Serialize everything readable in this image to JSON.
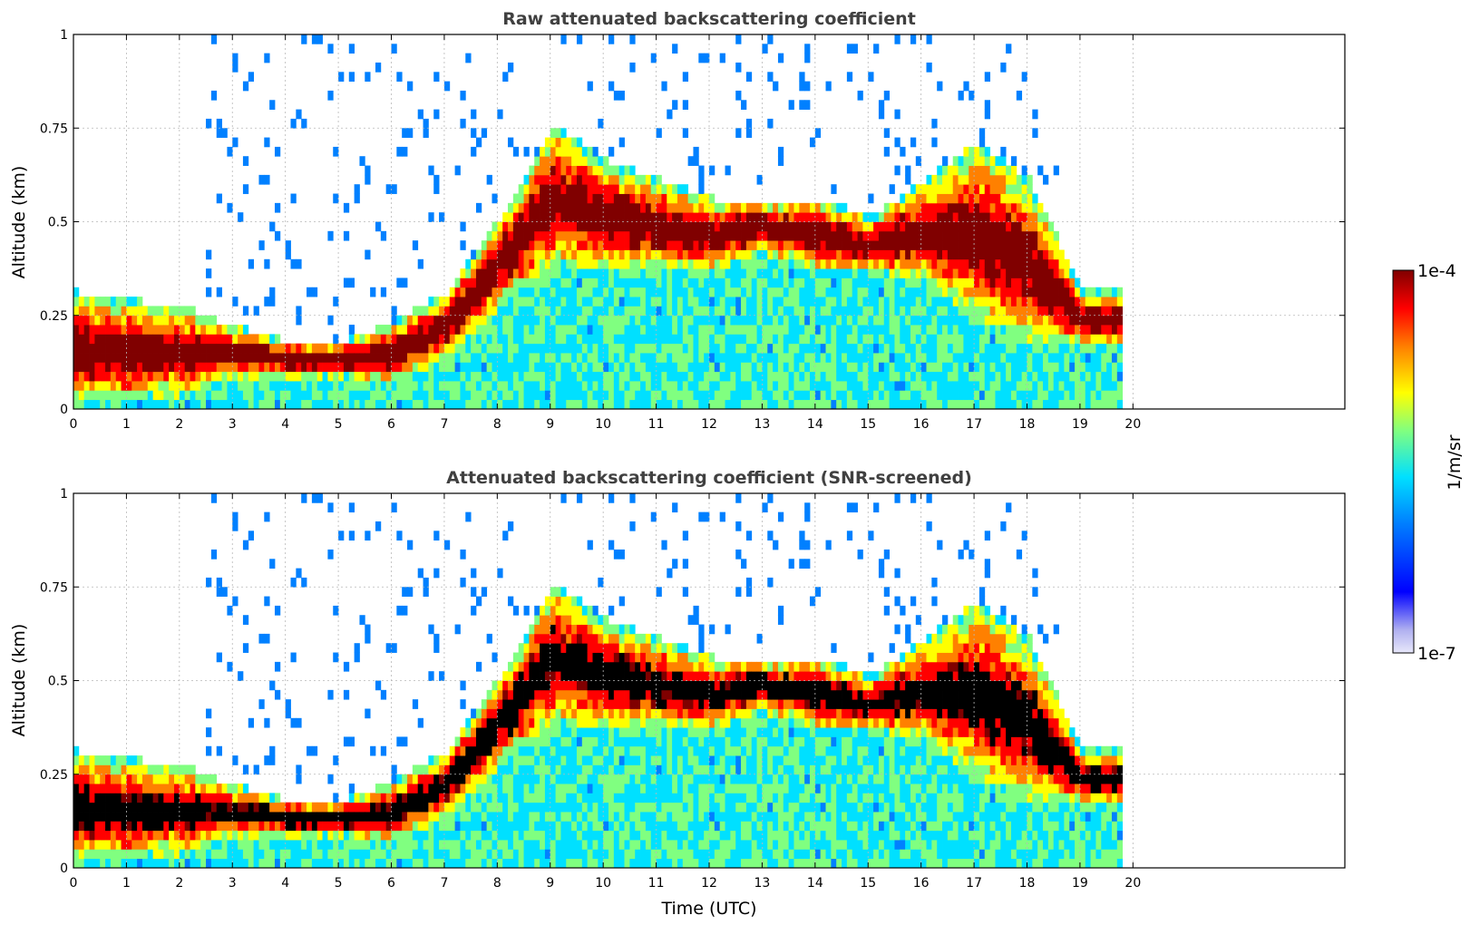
{
  "figure": {
    "xlabel": "Time (UTC)"
  },
  "colorbar": {
    "label": "1/m/sr",
    "max_label": "1e-4",
    "min_label": "1e-7",
    "vmin": 1e-07,
    "vmax": 0.0001,
    "scale": "log",
    "colormap": "jet",
    "colors": [
      "#e8e8fa",
      "#b0b0f0",
      "#0000ff",
      "#0080ff",
      "#00e0ff",
      "#80ff80",
      "#ffff00",
      "#ff8000",
      "#ff0000",
      "#800000"
    ]
  },
  "chart_data": [
    {
      "type": "heatmap",
      "title": "Raw attenuated backscattering coefficient",
      "xlabel": "",
      "ylabel": "Altitude (km)",
      "xlim": [
        0,
        24
      ],
      "ylim": [
        0,
        1
      ],
      "x_ticks": [
        "0",
        "1",
        "2",
        "3",
        "4",
        "5",
        "6",
        "7",
        "8",
        "9",
        "10",
        "11",
        "12",
        "13",
        "14",
        "15",
        "16",
        "17",
        "18",
        "19",
        "20"
      ],
      "y_ticks": [
        "0",
        "0.25",
        "0.5",
        "0.75",
        "1"
      ],
      "grid": true,
      "data_end_time": 19.8,
      "screened": false,
      "layer_top_km": [
        0.3,
        0.28,
        0.26,
        0.21,
        0.17,
        0.17,
        0.22,
        0.3,
        0.5,
        0.75,
        0.65,
        0.6,
        0.55,
        0.55,
        0.55,
        0.5,
        0.6,
        0.7,
        0.6,
        0.3,
        0.3
      ],
      "layer_bottom_km": [
        0.0,
        0.0,
        0.02,
        0.06,
        0.07,
        0.07,
        0.05,
        0.12,
        0.25,
        0.35,
        0.35,
        0.35,
        0.35,
        0.4,
        0.35,
        0.35,
        0.32,
        0.2,
        0.15,
        0.15,
        0.15
      ]
    },
    {
      "type": "heatmap",
      "title": "Attenuated backscattering coefficient (SNR-screened)",
      "xlabel": "Time (UTC)",
      "ylabel": "Altitude (km)",
      "xlim": [
        0,
        24
      ],
      "ylim": [
        0,
        1
      ],
      "x_ticks": [
        "0",
        "1",
        "2",
        "3",
        "4",
        "5",
        "6",
        "7",
        "8",
        "9",
        "10",
        "11",
        "12",
        "13",
        "14",
        "15",
        "16",
        "17",
        "18",
        "19",
        "20"
      ],
      "y_ticks": [
        "0",
        "0.25",
        "0.5",
        "0.75",
        "1"
      ],
      "grid": true,
      "data_end_time": 19.8,
      "screened": true,
      "layer_top_km": [
        0.3,
        0.28,
        0.26,
        0.21,
        0.17,
        0.17,
        0.22,
        0.3,
        0.5,
        0.75,
        0.65,
        0.6,
        0.55,
        0.55,
        0.55,
        0.5,
        0.6,
        0.7,
        0.6,
        0.3,
        0.3
      ],
      "layer_bottom_km": [
        0.0,
        0.0,
        0.02,
        0.06,
        0.07,
        0.07,
        0.05,
        0.12,
        0.25,
        0.35,
        0.35,
        0.35,
        0.35,
        0.4,
        0.35,
        0.35,
        0.32,
        0.2,
        0.15,
        0.15,
        0.15
      ]
    }
  ]
}
